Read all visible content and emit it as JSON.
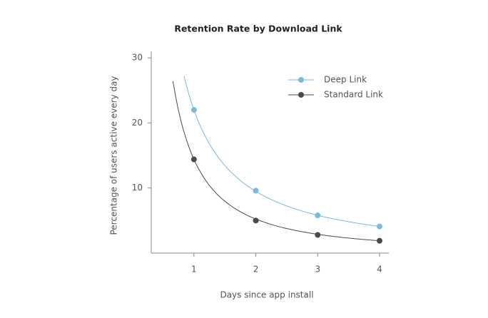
{
  "chart_data": {
    "type": "line",
    "title": "Retention Rate by Download Link",
    "x_label": "Days since app install",
    "y_label": "Percentage of users  active every day",
    "x": [
      1,
      2,
      3,
      4
    ],
    "series": [
      {
        "name": "Deep Link",
        "color": "#7db9dd",
        "values": [
          22,
          9.6,
          5.8,
          4.1
        ]
      },
      {
        "name": "Standard Link",
        "color": "#4a4a4a",
        "values": [
          14.4,
          5.0,
          2.8,
          1.9
        ]
      }
    ],
    "xlim": [
      0.31,
      4.15
    ],
    "ylim": [
      0,
      31
    ],
    "xticks": [
      1,
      2,
      3,
      4
    ],
    "yticks": [
      10,
      20,
      30
    ],
    "legend": "top-right"
  }
}
